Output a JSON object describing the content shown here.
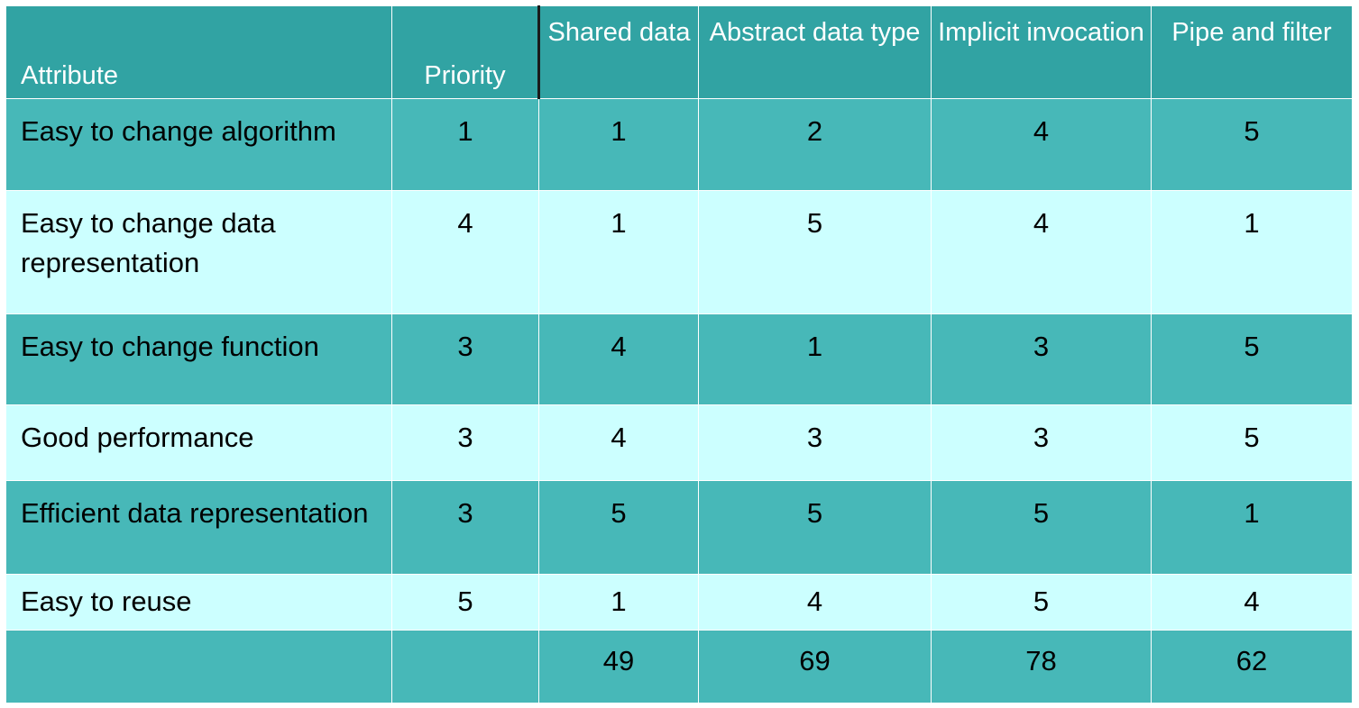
{
  "header": {
    "attribute": "Attribute",
    "priority": "Priority",
    "architectures": [
      "Shared data",
      "Abstract data type",
      "Implicit invocation",
      "Pipe and filter"
    ]
  },
  "rows": [
    {
      "attribute": "Easy to change algorithm",
      "priority": "1",
      "scores": [
        "1",
        "2",
        "4",
        "5"
      ]
    },
    {
      "attribute": "Easy to change data representation",
      "priority": "4",
      "scores": [
        "1",
        "5",
        "4",
        "1"
      ]
    },
    {
      "attribute": "Easy to change function",
      "priority": "3",
      "scores": [
        "4",
        "1",
        "3",
        "5"
      ]
    },
    {
      "attribute": "Good performance",
      "priority": "3",
      "scores": [
        "4",
        "3",
        "3",
        "5"
      ]
    },
    {
      "attribute": "Efficient data representation",
      "priority": "3",
      "scores": [
        "5",
        "5",
        "5",
        "1"
      ]
    },
    {
      "attribute": "Easy to reuse",
      "priority": "5",
      "scores": [
        "1",
        "4",
        "5",
        "4"
      ]
    }
  ],
  "totals": {
    "attribute": "",
    "priority": "",
    "scores": [
      "49",
      "69",
      "78",
      "62"
    ]
  },
  "colors": {
    "header_bg": "#31a3a3",
    "dark_row_bg": "#47b8b8",
    "light_row_bg": "#ccffff"
  }
}
